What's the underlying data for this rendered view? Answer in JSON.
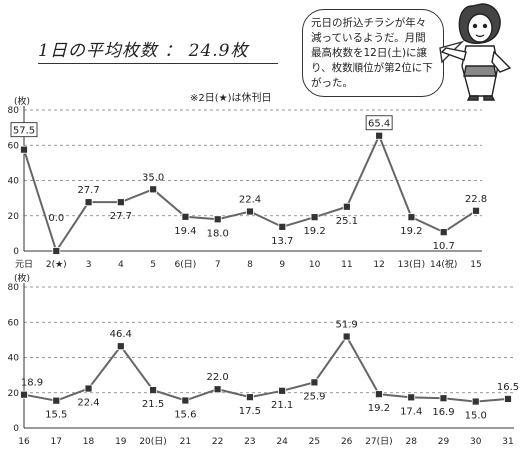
{
  "title": "1日の平均枚数 ： 24.9枚",
  "callout": "元日の折込チラシが年々減っているようだ。月間最高枚数を12日(土)に譲り、枚数順位が第2位に下がった。",
  "note": "※2日(★)は休刊日",
  "character_icon": "woman-pointing-illustration",
  "chart_data": [
    {
      "type": "line",
      "ylabel": "(枚)",
      "ylim": [
        0,
        80
      ],
      "yticks": [
        0,
        20,
        40,
        60,
        80
      ],
      "grid": true,
      "categories": [
        "元日",
        "2(★)",
        "3",
        "4",
        "5",
        "6(日)",
        "7",
        "8",
        "9",
        "10",
        "11",
        "12",
        "13(日)",
        "14(祝)",
        "15"
      ],
      "values": [
        57.5,
        0.0,
        27.7,
        27.7,
        35.0,
        19.4,
        18.0,
        22.4,
        13.7,
        19.2,
        25.1,
        65.4,
        19.2,
        10.7,
        22.8
      ],
      "labels": [
        "57.5",
        "0.0",
        "27.7",
        "27.7",
        "35.0",
        "19.4",
        "18.0",
        "22.4",
        "13.7",
        "19.2",
        "25.1",
        "65.4",
        "19.2",
        "10.7",
        "22.8"
      ],
      "boxed_labels": [
        "57.5",
        "65.4"
      ]
    },
    {
      "type": "line",
      "ylabel": "(枚)",
      "ylim": [
        0,
        80
      ],
      "yticks": [
        0,
        20,
        40,
        60,
        80
      ],
      "grid": true,
      "categories": [
        "16",
        "17",
        "18",
        "19",
        "20(日)",
        "21",
        "22",
        "23",
        "24",
        "25",
        "26",
        "27(日)",
        "28",
        "29",
        "30",
        "31"
      ],
      "values": [
        18.9,
        15.5,
        22.4,
        46.4,
        21.5,
        15.6,
        22.0,
        17.5,
        21.1,
        25.9,
        51.9,
        19.2,
        17.4,
        16.9,
        15.0,
        16.5
      ],
      "labels": [
        "18.9",
        "15.5",
        "22.4",
        "46.4",
        "21.5",
        "15.6",
        "22.0",
        "17.5",
        "21.1",
        "25.9",
        "51.9",
        "19.2",
        "17.4",
        "16.9",
        "15.0",
        "16.5"
      ],
      "boxed_labels": []
    }
  ]
}
